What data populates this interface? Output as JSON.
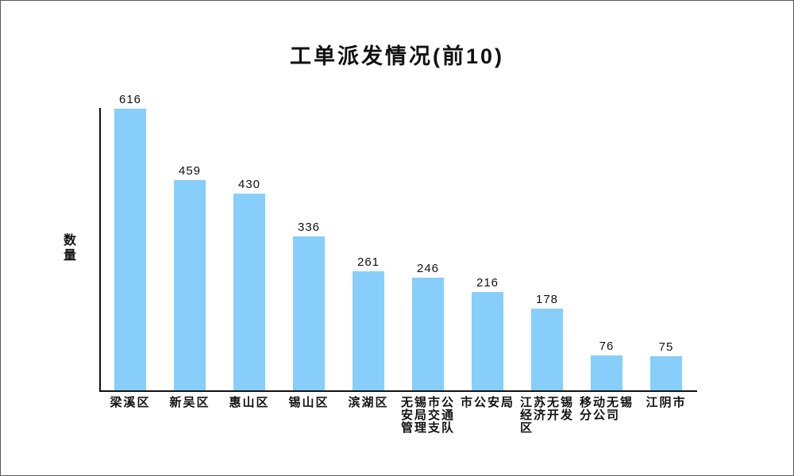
{
  "page": {
    "background_color": "#ffffff",
    "border_color": "#5a5a5a"
  },
  "chart_data": {
    "type": "bar",
    "title": "工单派发情况(前10)",
    "xlabel": "",
    "ylabel": "数量",
    "categories": [
      "梁溪区",
      "新吴区",
      "惠山区",
      "锡山区",
      "滨湖区",
      "无锡市公安局交通管理支队",
      "市公安局",
      "江苏无锡经济开发区",
      "移动无锡分公司",
      "江阴市"
    ],
    "category_label_lines": [
      [
        "梁溪区"
      ],
      [
        "新吴区"
      ],
      [
        "惠山区"
      ],
      [
        "锡山区"
      ],
      [
        "滨湖区"
      ],
      [
        "无锡市公",
        "安局交通",
        "管理支队"
      ],
      [
        "市公安局"
      ],
      [
        "江苏无锡",
        "经济开发",
        "区"
      ],
      [
        "移动无锡",
        "分公司"
      ],
      [
        "江阴市"
      ]
    ],
    "values": [
      616,
      459,
      430,
      336,
      261,
      246,
      216,
      178,
      76,
      75
    ],
    "ylim": [
      0,
      620
    ],
    "grid": false,
    "legend": null,
    "bar_color": "#87CEFA",
    "axis_color": "#111111",
    "value_label_color": "#111111"
  }
}
